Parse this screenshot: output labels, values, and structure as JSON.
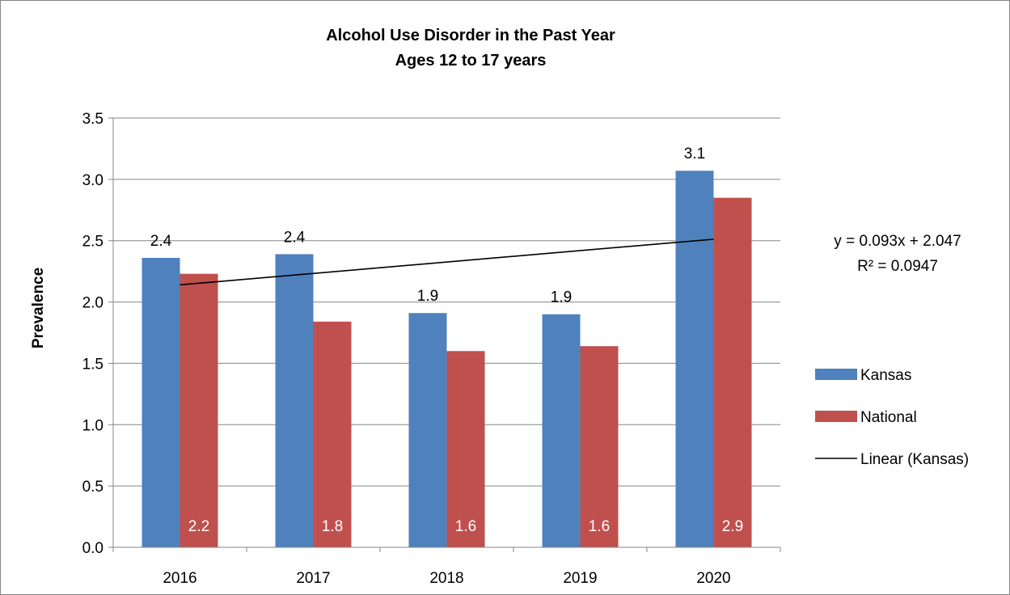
{
  "chart_data": {
    "type": "bar",
    "title": [
      "Alcohol Use Disorder in the Past Year",
      "Ages 12 to 17 years"
    ],
    "ylabel": "Prevalence",
    "xlabel": "",
    "categories": [
      "2016",
      "2017",
      "2018",
      "2019",
      "2020"
    ],
    "ylim": [
      0,
      3.5
    ],
    "yticks": [
      "0.0",
      "0.5",
      "1.0",
      "1.5",
      "2.0",
      "2.5",
      "3.0",
      "3.5"
    ],
    "grid": true,
    "legend_position": "right",
    "series": [
      {
        "name": "Kansas",
        "color": "#4f81bd",
        "values": [
          2.36,
          2.39,
          1.91,
          1.9,
          3.07
        ],
        "labels": [
          "2.4",
          "2.4",
          "1.9",
          "1.9",
          "3.1"
        ],
        "label_position": "above"
      },
      {
        "name": "National",
        "color": "#c0504d",
        "values": [
          2.23,
          1.84,
          1.6,
          1.64,
          2.85
        ],
        "labels": [
          "2.2",
          "1.8",
          "1.6",
          "1.6",
          "2.9"
        ],
        "label_position": "inside-base"
      }
    ],
    "trendline": {
      "name": "Linear (Kansas)",
      "color": "#000000",
      "equation": "y = 0.093x + 2.047",
      "r_squared": "R² = 0.0947",
      "slope": 0.093,
      "intercept": 2.047
    }
  }
}
